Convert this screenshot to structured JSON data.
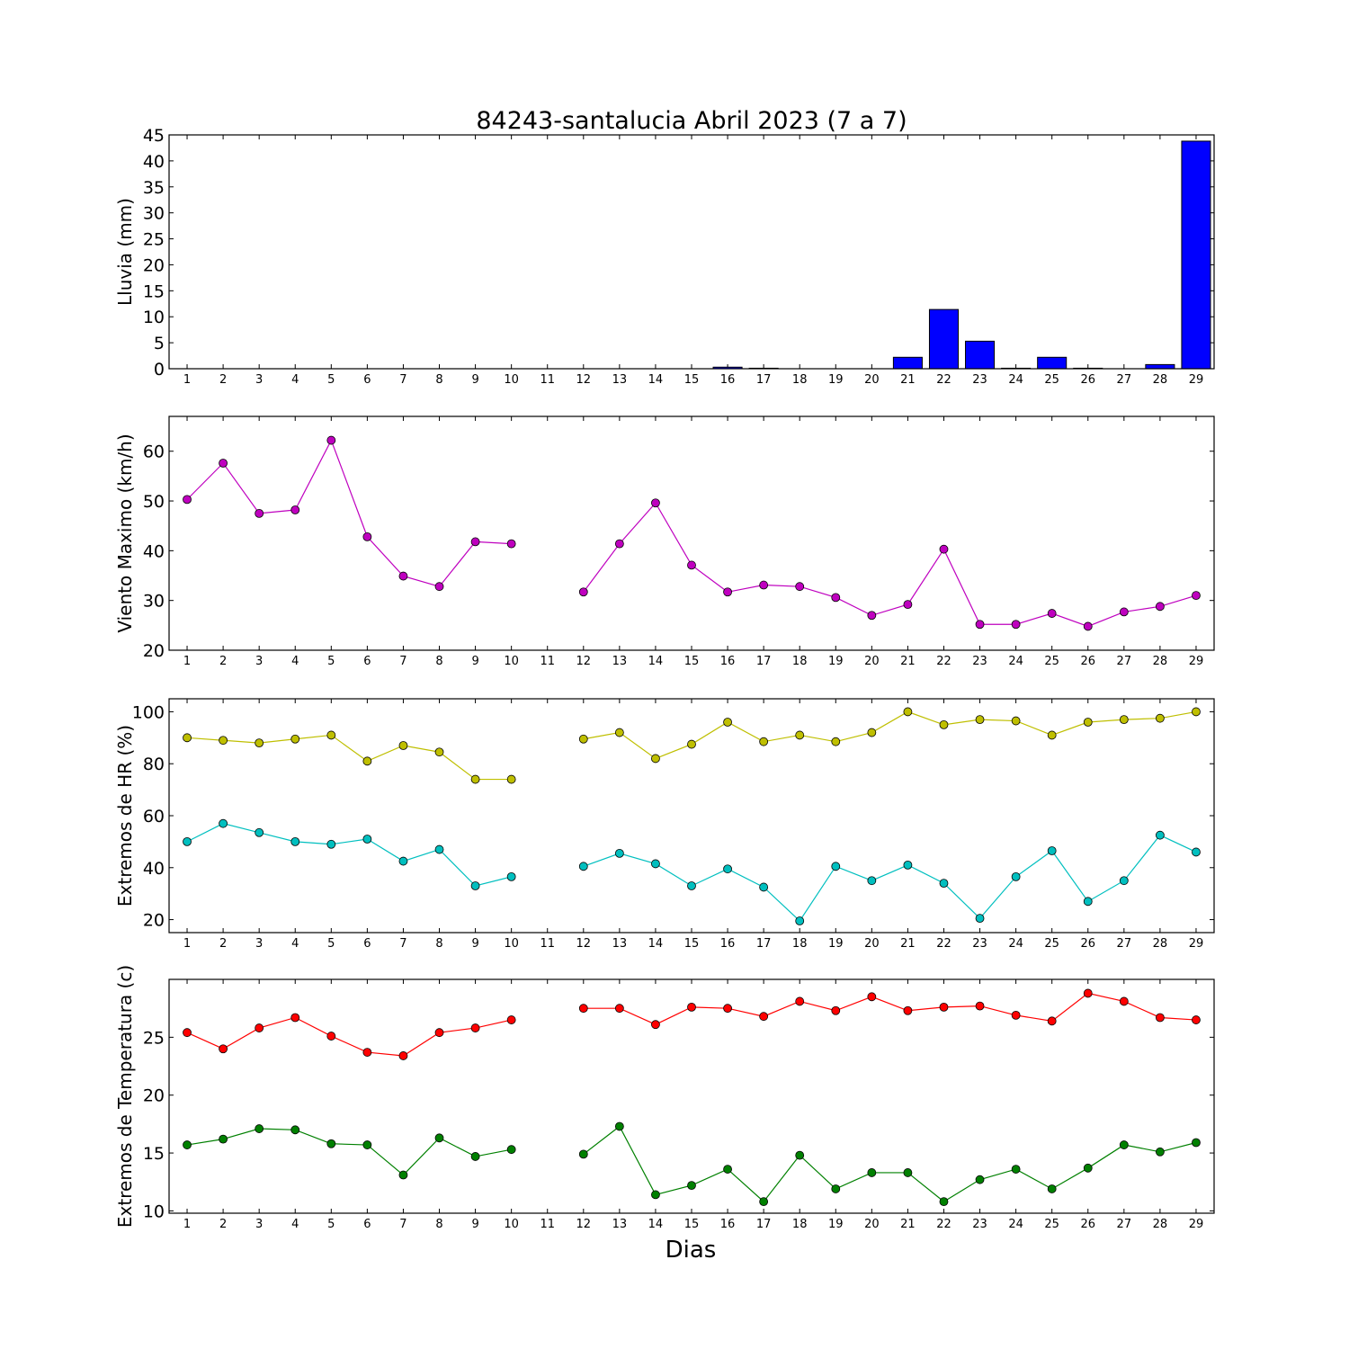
{
  "chart_data": {
    "title": "84243-santalucia Abril 2023  (7 a 7)",
    "xlabel": "Dias",
    "days": [
      1,
      2,
      3,
      4,
      5,
      6,
      7,
      8,
      9,
      10,
      11,
      12,
      13,
      14,
      15,
      16,
      17,
      18,
      19,
      20,
      21,
      22,
      23,
      24,
      25,
      26,
      27,
      28,
      29
    ],
    "panels": [
      {
        "type": "bar",
        "ylabel": "Lluvia (mm)",
        "ylim": [
          0,
          45
        ],
        "yticks": [
          0,
          5,
          10,
          15,
          20,
          25,
          30,
          35,
          40,
          45
        ],
        "series": [
          {
            "color": "#0000ff",
            "values": [
              0,
              0,
              0,
              0,
              0,
              0,
              0,
              0,
              0,
              0,
              0,
              0,
              0,
              0,
              0,
              0.3,
              0.1,
              0,
              0,
              0,
              2.2,
              11.4,
              5.3,
              0.1,
              2.2,
              0.1,
              0,
              0.8,
              43.8
            ]
          }
        ]
      },
      {
        "type": "line",
        "ylabel": "Viento Maximo (km/h)",
        "ylim": [
          20,
          67
        ],
        "yticks": [
          20,
          30,
          40,
          50,
          60
        ],
        "series": [
          {
            "color": "#bf00bf",
            "values": [
              50.3,
              57.6,
              47.5,
              48.2,
              62.2,
              42.8,
              34.9,
              32.8,
              41.8,
              41.4,
              null,
              31.7,
              41.4,
              49.6,
              37.1,
              31.7,
              33.1,
              32.8,
              30.6,
              27.0,
              29.2,
              40.3,
              25.2,
              25.2,
              27.4,
              24.8,
              27.7,
              28.8,
              31.0
            ]
          }
        ]
      },
      {
        "type": "line",
        "ylabel": "Extremos de HR (%)",
        "ylim": [
          15,
          105
        ],
        "yticks": [
          20,
          40,
          60,
          80,
          100
        ],
        "series": [
          {
            "color": "#bfbf00",
            "values": [
              90,
              89,
              88,
              89.5,
              91,
              81,
              87,
              84.5,
              74,
              74,
              null,
              89.5,
              92,
              82,
              87.5,
              96,
              88.5,
              91,
              88.5,
              92,
              100,
              95,
              97,
              96.5,
              91,
              96,
              97,
              97.5,
              100
            ]
          },
          {
            "color": "#00bfbf",
            "values": [
              50,
              57,
              53.5,
              50,
              49,
              51,
              42.5,
              47,
              33,
              36.5,
              null,
              40.5,
              45.5,
              41.5,
              33,
              39.5,
              32.5,
              19.5,
              40.5,
              35,
              41,
              34,
              20.5,
              36.5,
              46.5,
              27,
              35,
              52.5,
              46
            ]
          }
        ]
      },
      {
        "type": "line",
        "ylabel": "Extremos de Temperatura (c)",
        "ylim": [
          9.8,
          30
        ],
        "yticks": [
          10,
          15,
          20,
          25
        ],
        "series": [
          {
            "color": "#ff0000",
            "values": [
              25.4,
              24.0,
              25.8,
              26.7,
              25.1,
              23.7,
              23.4,
              25.4,
              25.8,
              26.5,
              null,
              27.5,
              27.5,
              26.1,
              27.6,
              27.5,
              26.8,
              28.1,
              27.3,
              28.5,
              27.3,
              27.6,
              27.7,
              26.9,
              26.4,
              28.8,
              28.1,
              26.7,
              26.5
            ]
          },
          {
            "color": "#008000",
            "values": [
              15.7,
              16.2,
              17.1,
              17.0,
              15.8,
              15.7,
              13.1,
              16.3,
              14.7,
              15.3,
              null,
              14.9,
              17.3,
              11.4,
              12.2,
              13.6,
              10.8,
              14.8,
              11.9,
              13.3,
              13.3,
              10.8,
              12.7,
              13.6,
              11.9,
              13.7,
              15.7,
              15.1,
              15.9
            ]
          }
        ]
      }
    ]
  }
}
